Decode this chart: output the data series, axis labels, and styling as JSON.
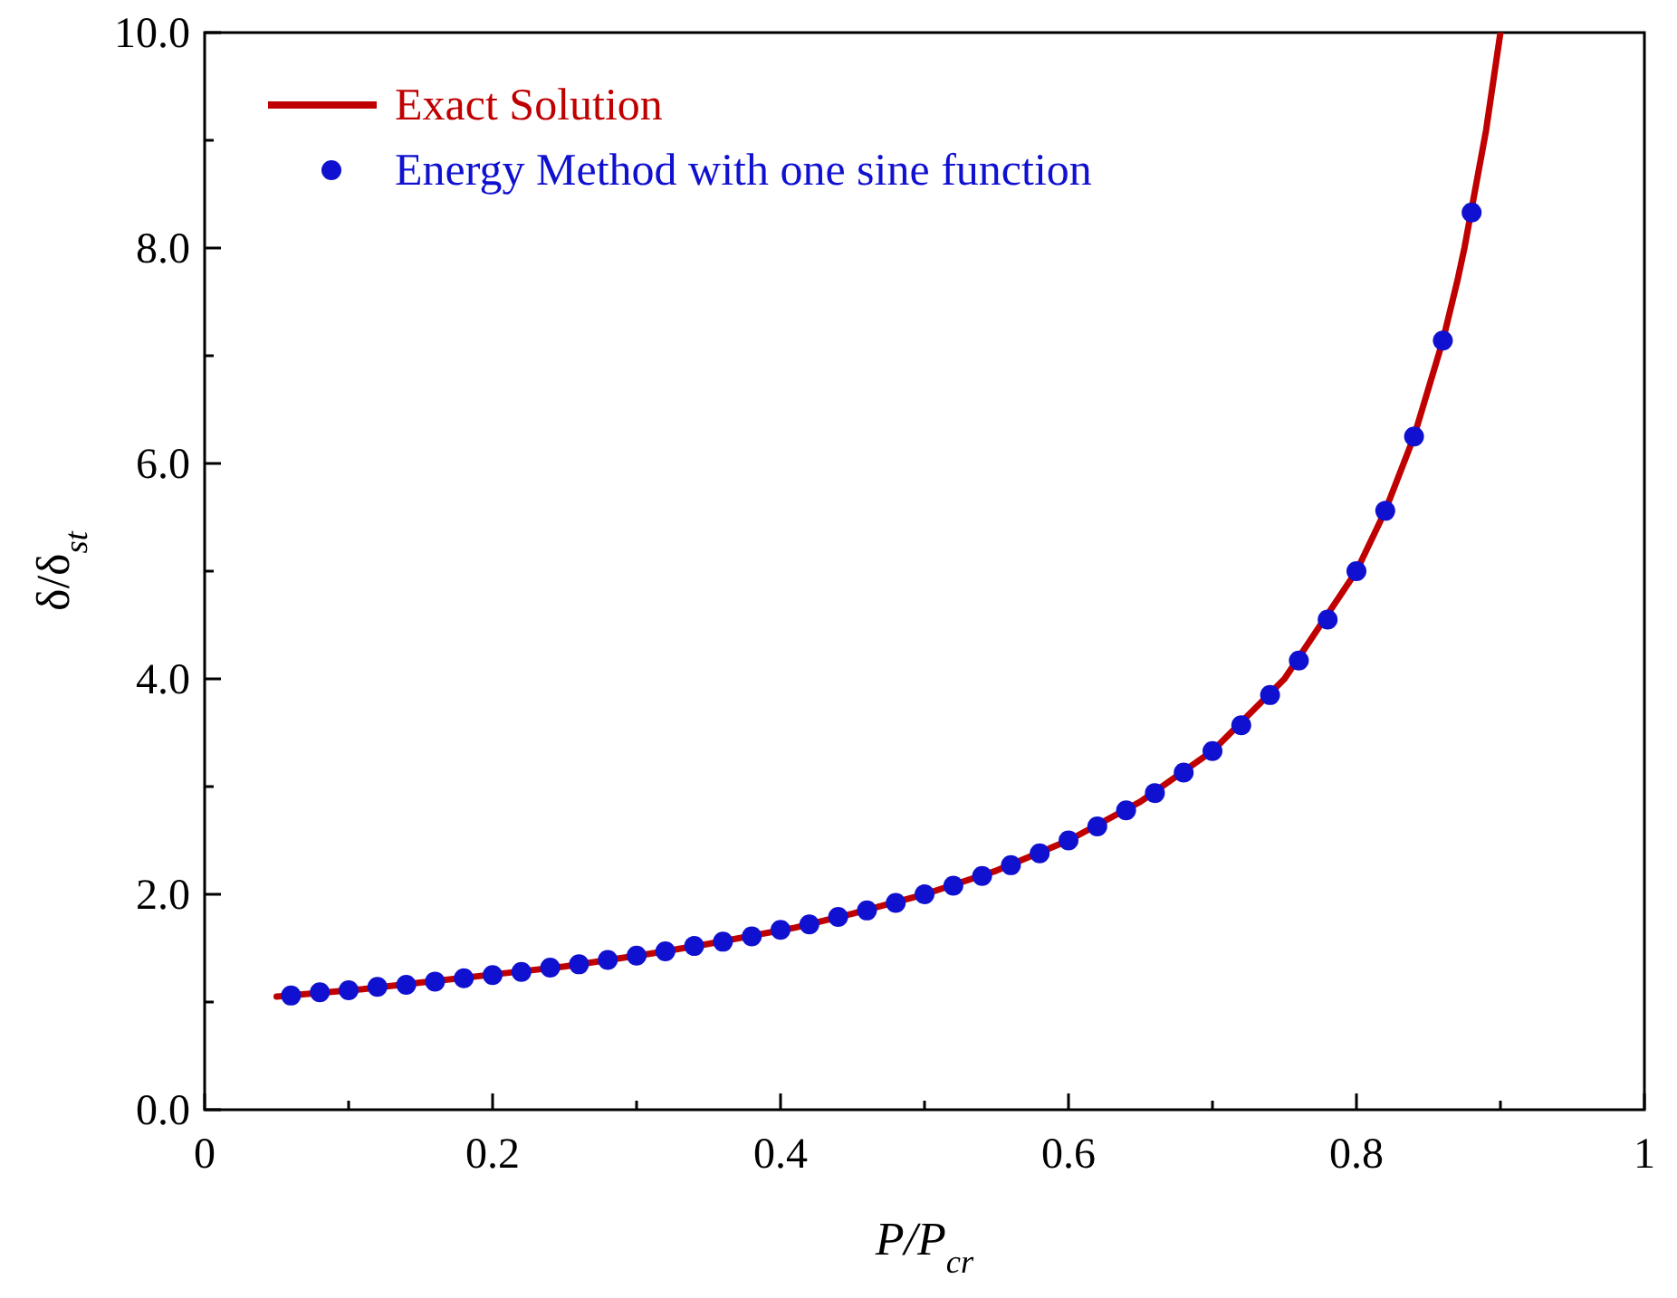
{
  "chart_data": {
    "type": "line",
    "xlabel": "P/P$_{cr}$",
    "ylabel": "δ/δ$_{st}$",
    "xlim": [
      0,
      1
    ],
    "ylim": [
      0,
      10
    ],
    "xticks": [
      0,
      {
        "value": 0.1,
        "label": null
      },
      0.2,
      {
        "value": 0.3,
        "label": null
      },
      0.4,
      {
        "value": 0.5,
        "label": null
      },
      0.6,
      {
        "value": 0.7,
        "label": null
      },
      0.8,
      {
        "value": 0.9,
        "label": null
      },
      1
    ],
    "yticks": [
      {
        "value": 0,
        "label": "0.0"
      },
      {
        "value": 1,
        "label": null
      },
      {
        "value": 2,
        "label": "2.0"
      },
      {
        "value": 3,
        "label": null
      },
      {
        "value": 4,
        "label": "4.0"
      },
      {
        "value": 5,
        "label": null
      },
      {
        "value": 6,
        "label": "6.0"
      },
      {
        "value": 7,
        "label": null
      },
      {
        "value": 8,
        "label": "8.0"
      },
      {
        "value": 9,
        "label": null
      },
      {
        "value": 10,
        "label": "10.0"
      }
    ],
    "grid": false,
    "legend": "top left",
    "series": [
      {
        "name": "Exact Solution",
        "color": "#c00000",
        "marker": "none",
        "line_style": "solid",
        "x": [
          0.05,
          0.11,
          0.15,
          0.21,
          0.25,
          0.31,
          0.35,
          0.41,
          0.45,
          0.5,
          0.55,
          0.6,
          0.65,
          0.7,
          0.75,
          0.8,
          0.82,
          0.84,
          0.86,
          0.87,
          0.875,
          0.89,
          0.9
        ],
        "values": [
          1.05,
          1.12,
          1.18,
          1.27,
          1.33,
          1.45,
          1.54,
          1.69,
          1.82,
          2.0,
          2.22,
          2.5,
          2.86,
          3.33,
          4.0,
          5.0,
          5.56,
          6.25,
          7.14,
          7.69,
          8.0,
          9.09,
          10.0
        ]
      },
      {
        "name": "Energy Method with one sine function",
        "type": "scatter",
        "color": "#1010d0",
        "marker": "circle",
        "x": [
          0.06,
          0.08,
          0.1,
          0.12,
          0.14,
          0.16,
          0.18,
          0.2,
          0.22,
          0.24,
          0.26,
          0.28,
          0.3,
          0.32,
          0.34,
          0.36,
          0.38,
          0.4,
          0.42,
          0.44,
          0.46,
          0.48,
          0.5,
          0.52,
          0.54,
          0.56,
          0.58,
          0.6,
          0.62,
          0.64,
          0.66,
          0.68,
          0.7,
          0.72,
          0.74,
          0.76,
          0.78,
          0.8,
          0.82,
          0.84,
          0.86,
          0.88
        ],
        "values": [
          1.06,
          1.09,
          1.11,
          1.14,
          1.16,
          1.19,
          1.22,
          1.25,
          1.28,
          1.32,
          1.35,
          1.39,
          1.43,
          1.47,
          1.52,
          1.56,
          1.61,
          1.67,
          1.72,
          1.79,
          1.85,
          1.92,
          2.0,
          2.08,
          2.17,
          2.27,
          2.38,
          2.5,
          2.63,
          2.78,
          2.94,
          3.13,
          3.33,
          3.57,
          3.85,
          4.17,
          4.55,
          5.0,
          5.56,
          6.25,
          7.14,
          8.33
        ]
      }
    ]
  }
}
